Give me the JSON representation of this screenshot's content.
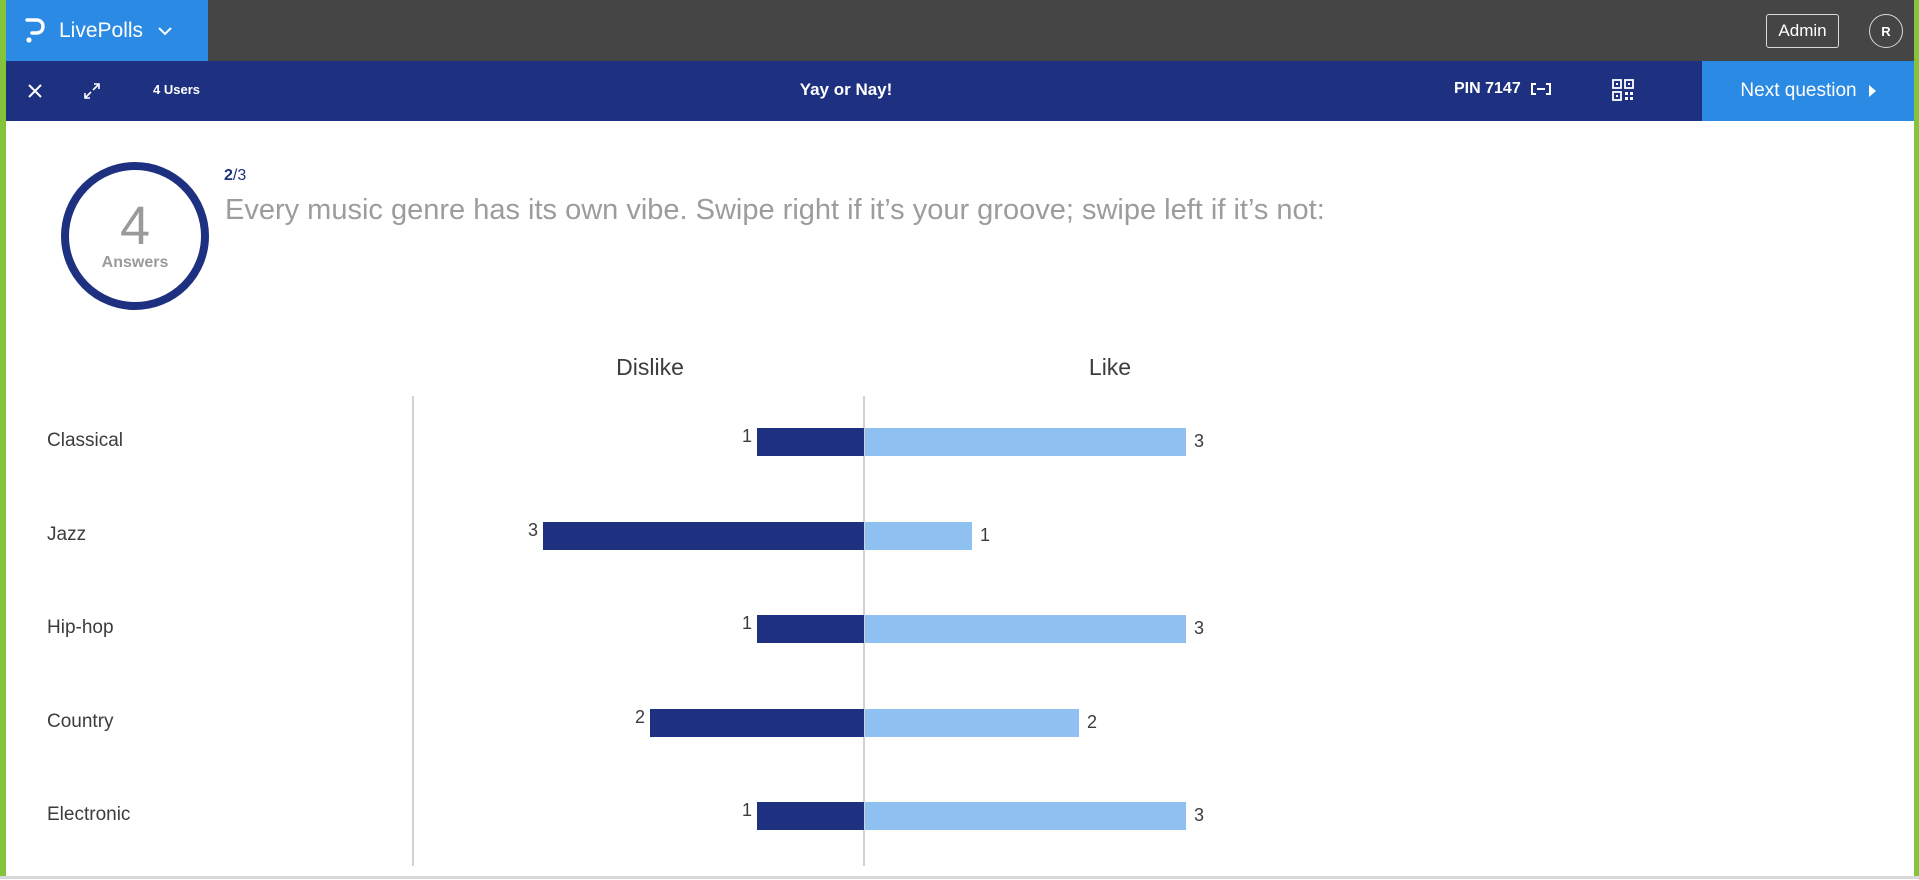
{
  "app": {
    "name": "LivePolls",
    "admin_label": "Admin",
    "avatar_initial": "R"
  },
  "navbar": {
    "users_count": "4 Users",
    "poll_title": "Yay or Nay!",
    "pin_label": "PIN 7147",
    "next_label": "Next question"
  },
  "summary": {
    "answers_count": "4",
    "answers_label": "Answers",
    "question_current": "2",
    "question_total": "/3",
    "question_text": "Every music genre has its own vibe. Swipe right if it’s your groove; swipe left if it’s not:"
  },
  "colors": {
    "brand_blue": "#2b8ae3",
    "navy": "#1e3180",
    "like_bar": "#8ec1f1",
    "topbar": "#454545",
    "frame_green": "#84c43a"
  },
  "icons": {
    "brand": "livepolls-logo-icon",
    "menu": "chevron-down-icon",
    "close": "close-icon",
    "fullscreen": "expand-icon",
    "pin": "pin-display-icon",
    "qr": "qr-code-icon",
    "next": "play-arrow-icon"
  },
  "chart_data": {
    "type": "bar",
    "orientation": "horizontal-diverging",
    "categories": [
      "Classical",
      "Jazz",
      "Hip-hop",
      "Country",
      "Electronic"
    ],
    "series": [
      {
        "name": "Dislike",
        "values": [
          1,
          3,
          1,
          2,
          1
        ],
        "color": "#1e3180",
        "direction": "left"
      },
      {
        "name": "Like",
        "values": [
          3,
          1,
          3,
          2,
          3
        ],
        "color": "#8ec1f1",
        "direction": "right"
      }
    ],
    "xlim": [
      0,
      3
    ],
    "grid": false,
    "legend": "column headers above bars"
  }
}
